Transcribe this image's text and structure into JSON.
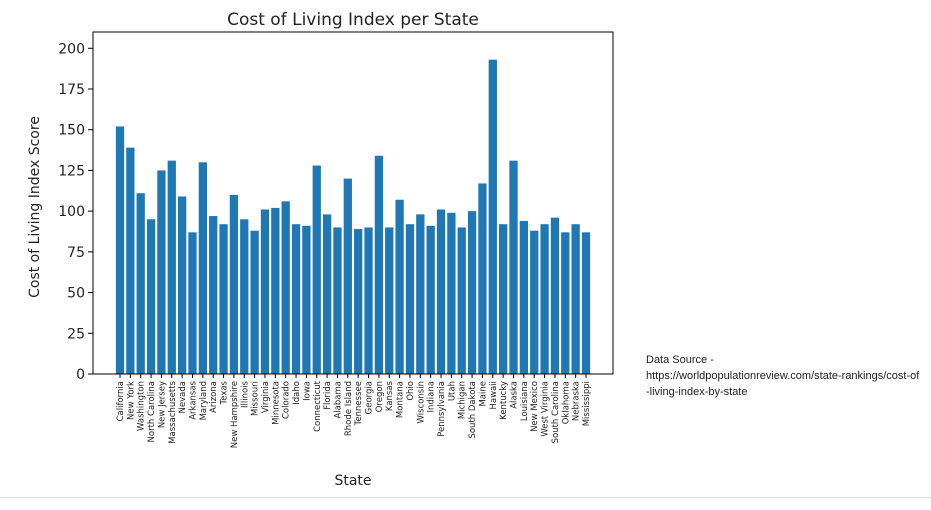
{
  "chart_data": {
    "type": "bar",
    "title": "Cost of Living Index per State",
    "xlabel": "State",
    "ylabel": "Cost of Living Index Score",
    "ylim": [
      0,
      210
    ],
    "yticks": [
      0,
      25,
      50,
      75,
      100,
      125,
      150,
      175,
      200
    ],
    "grid": false,
    "bar_color": "#1f77b4",
    "categories": [
      "California",
      "New York",
      "Washington",
      "North Carolina",
      "New Jersey",
      "Massachusetts",
      "Nevada",
      "Arkansas",
      "Maryland",
      "Arizona",
      "Texas",
      "New Hampshire",
      "Illinois",
      "Missouri",
      "Virginia",
      "Minnesota",
      "Colorado",
      "Idaho",
      "Iowa",
      "Connecticut",
      "Florida",
      "Alabama",
      "Rhode Island",
      "Tennessee",
      "Georgia",
      "Oregon",
      "Kansas",
      "Montana",
      "Ohio",
      "Wisconsin",
      "Indiana",
      "Pennsylvania",
      "Utah",
      "Michigan",
      "South Dakota",
      "Maine",
      "Hawaii",
      "Kentucky",
      "Alaska",
      "Louisiana",
      "New Mexico",
      "West Virginia",
      "South Carolina",
      "Oklahoma",
      "Nebraska",
      "Mississippi"
    ],
    "values": [
      152,
      139,
      111,
      95,
      125,
      131,
      109,
      87,
      130,
      97,
      92,
      110,
      95,
      88,
      101,
      102,
      106,
      92,
      91,
      128,
      98,
      90,
      120,
      89,
      90,
      134,
      90,
      107,
      92,
      98,
      91,
      101,
      99,
      90,
      100,
      117,
      193,
      92,
      131,
      94,
      88,
      92,
      96,
      87,
      92,
      87
    ]
  },
  "source_note": "Data Source -\nhttps://worldpopulationreview.com/state-rankings/cost-of-living-index-by-state"
}
